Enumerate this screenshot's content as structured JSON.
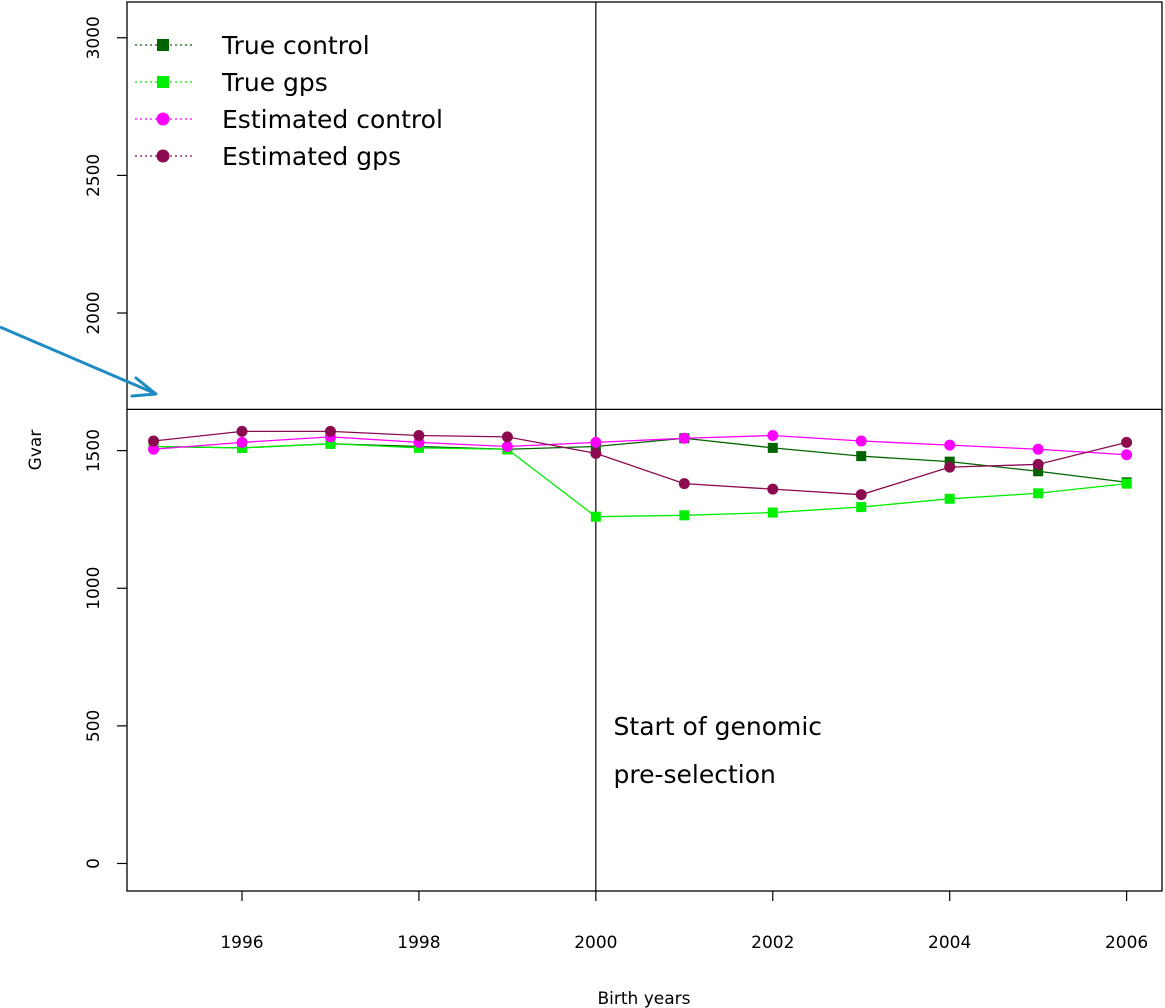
{
  "chart_data": {
    "type": "line",
    "title": "",
    "xlabel": "Birth years",
    "ylabel": "Gvar",
    "xlim": [
      1994.7,
      2006.4
    ],
    "ylim": [
      -100,
      3130
    ],
    "x_ticks": [
      1996,
      1998,
      2000,
      2002,
      2004,
      2006
    ],
    "y_ticks": [
      0,
      500,
      1000,
      1500,
      2000,
      2500,
      3000
    ],
    "grid": false,
    "legend_position": "top-left",
    "x": [
      1995,
      1996,
      1997,
      1998,
      1999,
      2000,
      2001,
      2002,
      2003,
      2004,
      2005,
      2006
    ],
    "series": [
      {
        "name": "True control",
        "marker": "square",
        "color": "#006400",
        "values": [
          1515,
          1510,
          1525,
          1515,
          1505,
          1515,
          1545,
          1510,
          1480,
          1460,
          1425,
          1385
        ]
      },
      {
        "name": "True gps",
        "marker": "square",
        "color": "#00ee00",
        "values": [
          1515,
          1510,
          1525,
          1510,
          1505,
          1260,
          1265,
          1275,
          1295,
          1325,
          1345,
          1380
        ]
      },
      {
        "name": "Estimated control",
        "marker": "circle",
        "color": "#ff00ff",
        "values": [
          1505,
          1530,
          1550,
          1530,
          1515,
          1530,
          1545,
          1555,
          1535,
          1520,
          1505,
          1485
        ]
      },
      {
        "name": "Estimated gps",
        "marker": "circle",
        "color": "#8b0a50",
        "values": [
          1535,
          1570,
          1570,
          1555,
          1550,
          1490,
          1380,
          1360,
          1340,
          1440,
          1450,
          1530
        ]
      }
    ],
    "reference_lines": {
      "vertical_x": 2000,
      "horizontal_y": 1650
    },
    "annotation": {
      "lines": [
        "Start of genomic",
        "pre-selection"
      ],
      "x": 2000.2,
      "y_lines": [
        500,
        325
      ]
    },
    "arrow_color": "#1e8bc3"
  }
}
